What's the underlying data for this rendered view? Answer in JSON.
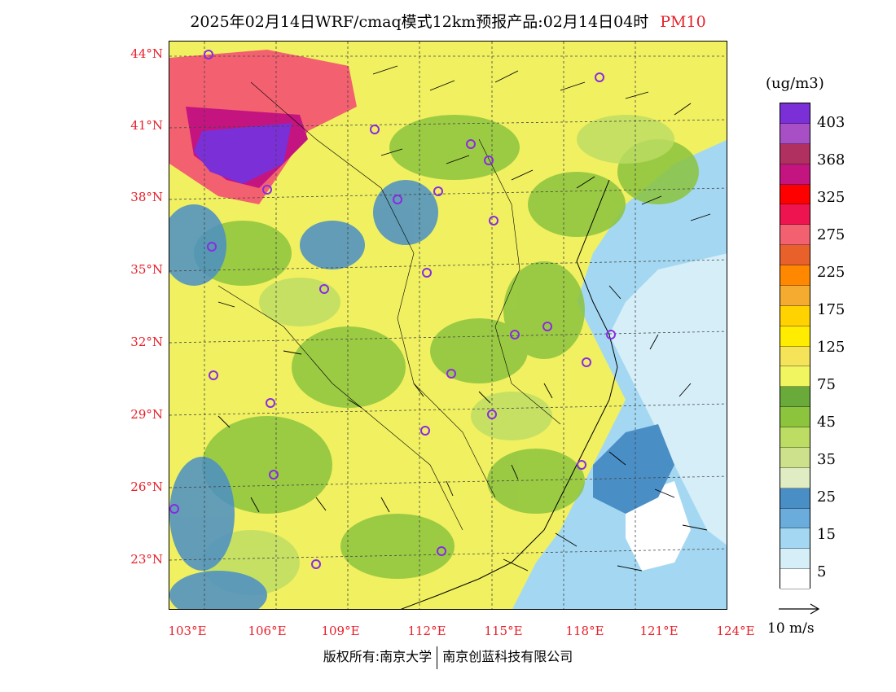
{
  "title": {
    "main": "2025年02月14日WRF/cmaq模式12km预报产品:02月14日04时",
    "variable": "PM10"
  },
  "map": {
    "lat_labels": [
      "44°N",
      "41°N",
      "38°N",
      "35°N",
      "32°N",
      "29°N",
      "26°N",
      "23°N"
    ],
    "lon_labels": [
      "103°E",
      "106°E",
      "109°E",
      "112°E",
      "115°E",
      "118°E",
      "121°E",
      "124°E"
    ]
  },
  "colorbar": {
    "unit": "(ug/m3)",
    "labels": [
      "403",
      "368",
      "325",
      "275",
      "225",
      "175",
      "125",
      "75",
      "45",
      "35",
      "25",
      "15",
      "5"
    ],
    "colors": [
      "#7b2fd6",
      "#a84fc6",
      "#b03060",
      "#c41480",
      "#ff0000",
      "#ee1450",
      "#f36070",
      "#e8602a",
      "#ff8800",
      "#f5aa30",
      "#ffd200",
      "#ffec00",
      "#f5e45a",
      "#f0f560",
      "#6aaa3a",
      "#8cc43e",
      "#bcdc64",
      "#cde08c",
      "#dfecc4",
      "#4a8ec6",
      "#6aacdc",
      "#a4d8f2",
      "#d6eef8",
      "#ffffff"
    ]
  },
  "reference_vector": {
    "label": "10 m/s"
  },
  "footer": {
    "left": "版权所有:南京大学",
    "right": "南京创蓝科技有限公司"
  }
}
